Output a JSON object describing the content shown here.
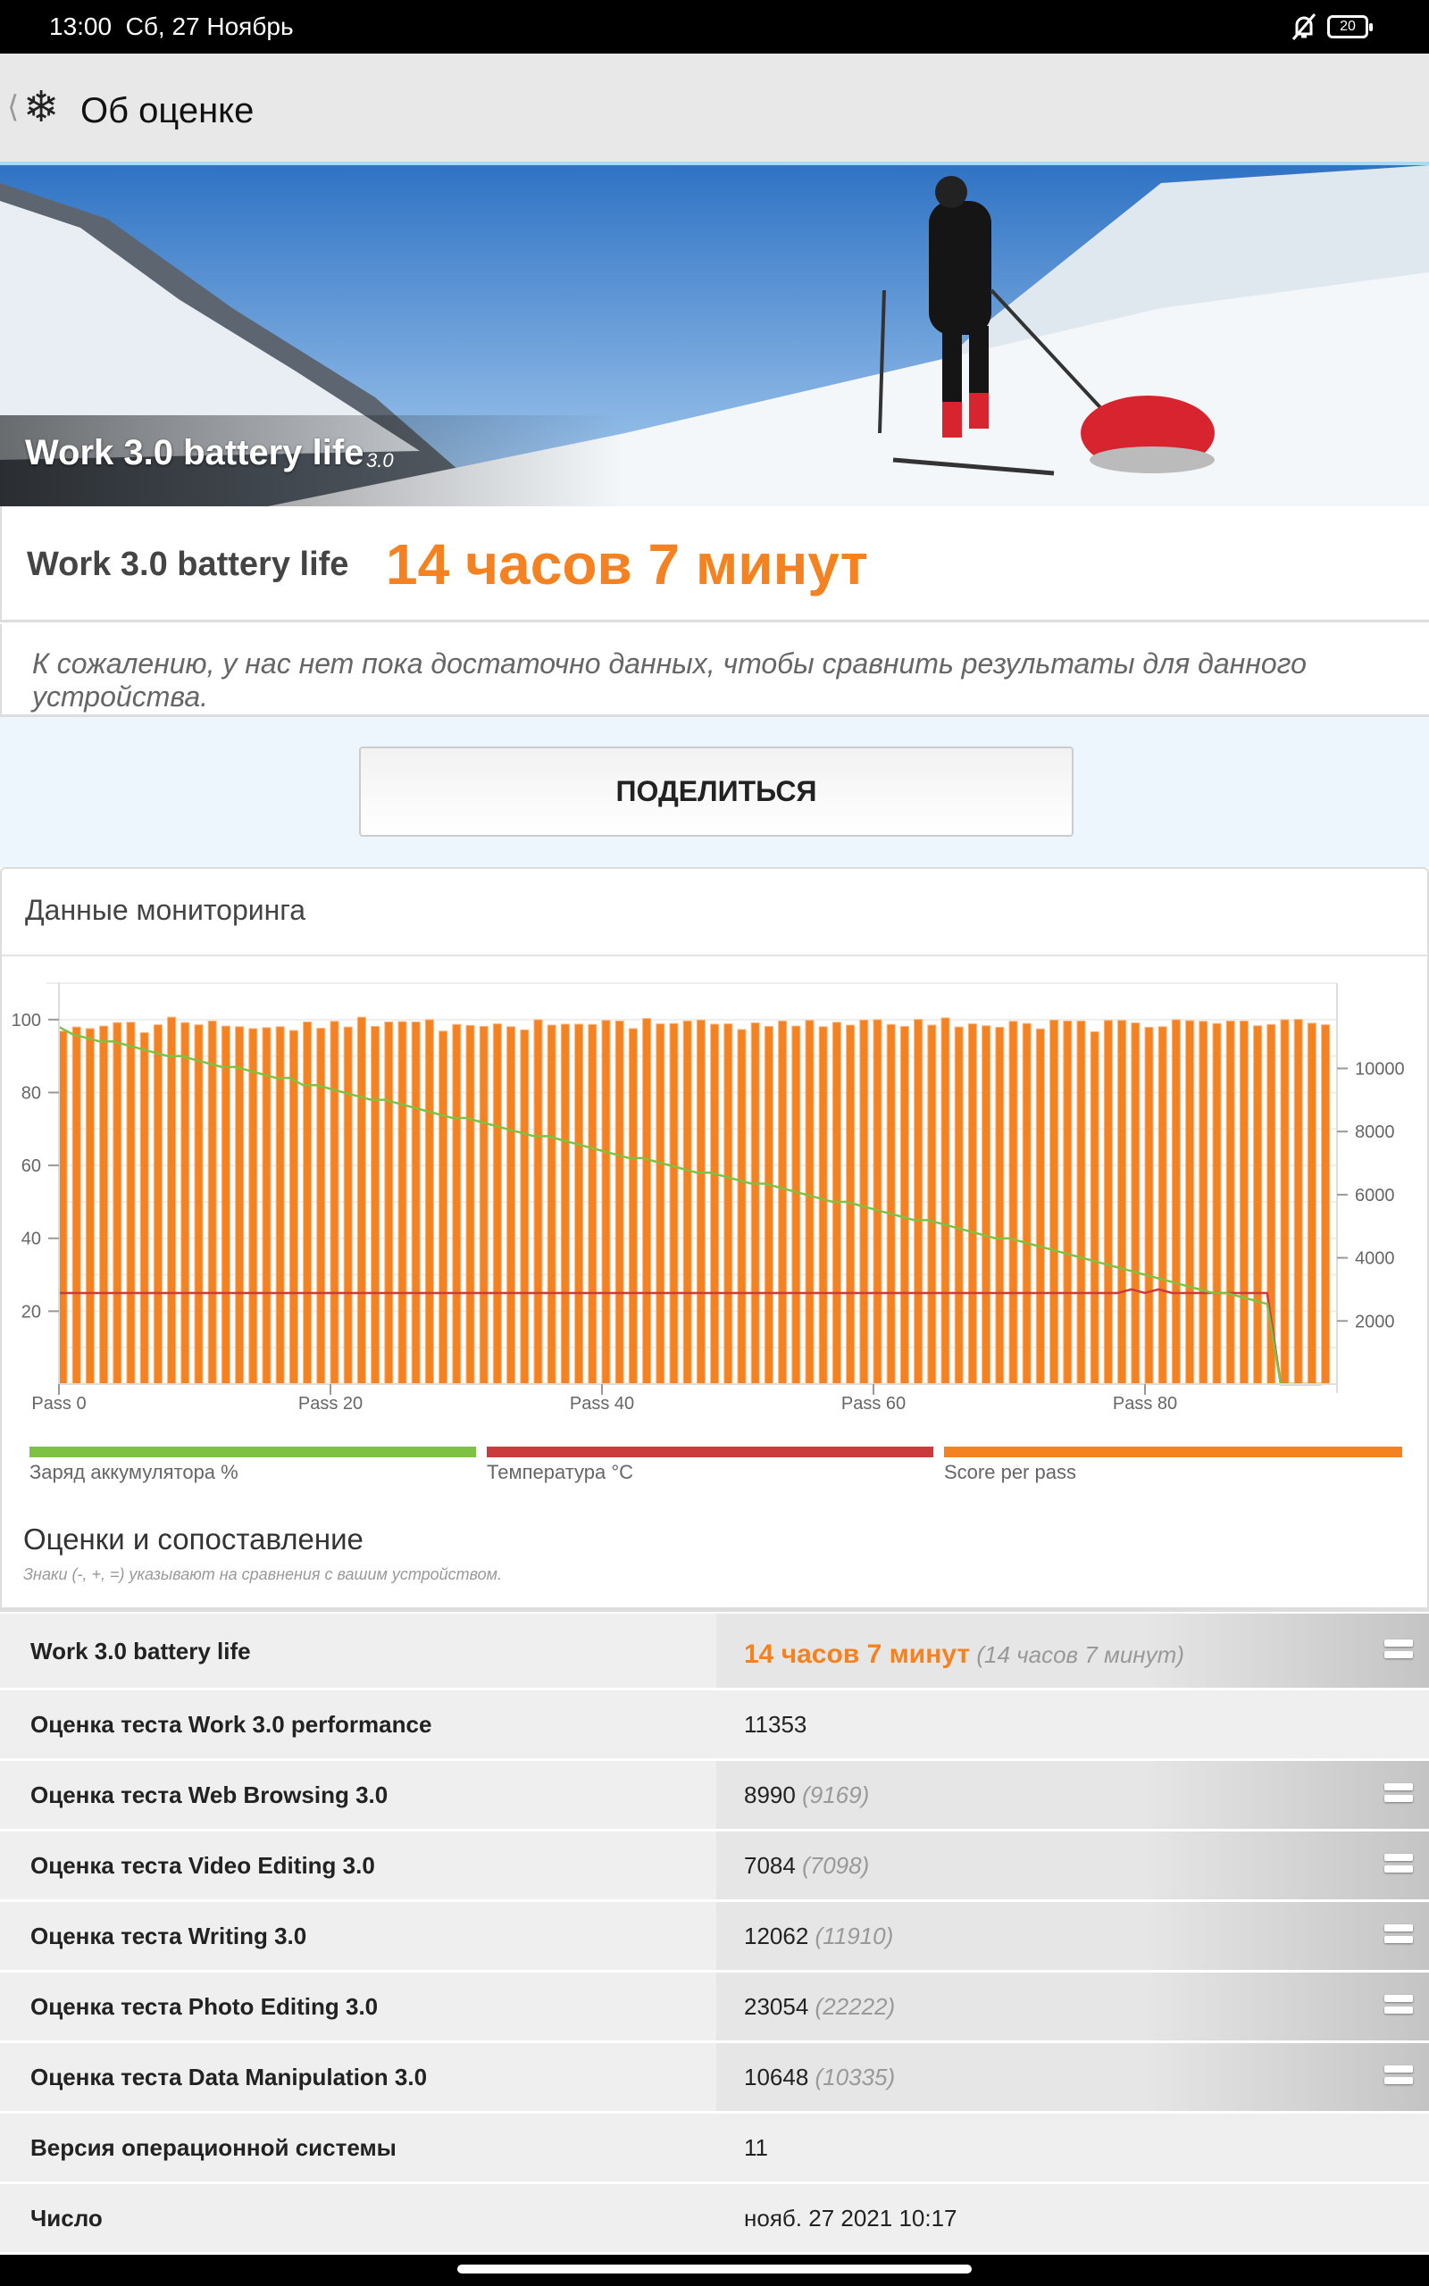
{
  "status_bar": {
    "time": "13:00",
    "date": "Сб, 27 Ноябрь",
    "battery": "20",
    "icons": [
      "bell-off-icon",
      "battery-icon"
    ]
  },
  "app_bar": {
    "back_icon": "chevron-left-icon",
    "logo_icon": "snowflake-icon",
    "title": "Об оценке"
  },
  "hero": {
    "title": "Work 3.0 battery life",
    "version": "3.0"
  },
  "result": {
    "label": "Work 3.0 battery life",
    "value": "14 часов 7 минут",
    "color": "#f58220"
  },
  "message": "К сожалению, у нас нет пока достаточно данных, чтобы сравнить результаты для данного устройства.",
  "share_label": "ПОДЕЛИТЬСЯ",
  "monitoring": {
    "title": "Данные мониторинга"
  },
  "chart_data": {
    "type": "bar+line",
    "x_tick_labels": [
      "Pass 0",
      "Pass 20",
      "Pass 40",
      "Pass 60",
      "Pass 80"
    ],
    "x_ticks": [
      0,
      20,
      40,
      60,
      80
    ],
    "xlim": [
      0,
      94
    ],
    "y_left": {
      "ylim": [
        0,
        110
      ],
      "ticks": [
        20,
        40,
        60,
        80,
        100
      ]
    },
    "y_right": {
      "ylim": [
        0,
        12700
      ],
      "ticks": [
        2000,
        4000,
        6000,
        8000,
        10000
      ]
    },
    "grid": true,
    "legend_placement": "bottom",
    "series": [
      {
        "name": "Заряд аккумулятора %",
        "type": "line",
        "axis": "left",
        "color": "#7dc242",
        "values": [
          98,
          96,
          95,
          94,
          94,
          93,
          92,
          91,
          90,
          90,
          89,
          88,
          87,
          87,
          86,
          85,
          84,
          84,
          82,
          82,
          81,
          80,
          79,
          78,
          78,
          77,
          76,
          75,
          74,
          73,
          73,
          72,
          71,
          70,
          69,
          68,
          68,
          67,
          66,
          65,
          64,
          63,
          62,
          62,
          61,
          60,
          59,
          58,
          58,
          57,
          56,
          55,
          55,
          54,
          53,
          52,
          51,
          50,
          50,
          49,
          48,
          47,
          46,
          45,
          45,
          44,
          43,
          42,
          41,
          40,
          40,
          39,
          38,
          37,
          36,
          35,
          34,
          33,
          32,
          31,
          30,
          29,
          28,
          27,
          26,
          25,
          25,
          24,
          23,
          22,
          0,
          0,
          0,
          0
        ]
      },
      {
        "name": "Температура °C",
        "type": "line",
        "axis": "left",
        "color": "#cc3b3b",
        "values": [
          25,
          25,
          25,
          25,
          25,
          25,
          25,
          25,
          25,
          25,
          25,
          25,
          25,
          25,
          25,
          25,
          25,
          25,
          25,
          25,
          25,
          25,
          25,
          25,
          25,
          25,
          25,
          25,
          25,
          25,
          25,
          25,
          25,
          25,
          25,
          25,
          25,
          25,
          25,
          25,
          25,
          25,
          25,
          25,
          25,
          25,
          25,
          25,
          25,
          25,
          25,
          25,
          25,
          25,
          25,
          25,
          25,
          25,
          25,
          25,
          25,
          25,
          25,
          25,
          25,
          25,
          25,
          25,
          25,
          25,
          25,
          25,
          25,
          25,
          25,
          25,
          25,
          25,
          25,
          26,
          25,
          26,
          25,
          25,
          25,
          25,
          25,
          25,
          25,
          25,
          0,
          0,
          0,
          0
        ]
      },
      {
        "name": "Score per pass",
        "type": "bar",
        "axis": "right",
        "color": "#f58220",
        "values": [
          11180,
          11310,
          11260,
          11340,
          11450,
          11460,
          11130,
          11380,
          11620,
          11450,
          11380,
          11500,
          11340,
          11320,
          11260,
          11290,
          11320,
          11200,
          11470,
          11270,
          11490,
          11310,
          11620,
          11330,
          11470,
          11480,
          11470,
          11540,
          11180,
          11390,
          11360,
          11330,
          11410,
          11320,
          11220,
          11540,
          11370,
          11400,
          11400,
          11390,
          11520,
          11500,
          11260,
          11580,
          11410,
          11420,
          11500,
          11530,
          11400,
          11410,
          11230,
          11440,
          11330,
          11500,
          11340,
          11520,
          11320,
          11460,
          11370,
          11530,
          11540,
          11390,
          11330,
          11550,
          11370,
          11600,
          11310,
          11410,
          11350,
          11300,
          11490,
          11420,
          11250,
          11530,
          11500,
          11500,
          11160,
          11520,
          11520,
          11440,
          11300,
          11320,
          11540,
          11510,
          11490,
          11420,
          11500,
          11500,
          11350,
          11390,
          11540,
          11550,
          11430,
          11380
        ]
      }
    ]
  },
  "comparison": {
    "title": "Оценки и сопоставление",
    "note": "Знаки (-, +, =) указывают на сравнения с вашим устройством.",
    "rows": [
      {
        "label": "Work 3.0 battery life",
        "value": "14 часов 7 минут",
        "ref": "(14 часов 7 минут)",
        "icon": "equals-icon"
      },
      {
        "label": "Оценка теста Work 3.0 performance",
        "value": "11353",
        "ref": ""
      },
      {
        "label": "Оценка теста Web Browsing 3.0",
        "value": "8990",
        "ref": "(9169)",
        "icon": "equals-icon"
      },
      {
        "label": "Оценка теста Video Editing 3.0",
        "value": "7084",
        "ref": "(7098)",
        "icon": "equals-icon"
      },
      {
        "label": "Оценка теста Writing 3.0",
        "value": "12062",
        "ref": "(11910)",
        "icon": "equals-icon"
      },
      {
        "label": "Оценка теста Photo Editing 3.0",
        "value": "23054",
        "ref": "(22222)",
        "icon": "equals-icon"
      },
      {
        "label": "Оценка теста Data Manipulation 3.0",
        "value": "10648",
        "ref": "(10335)",
        "icon": "equals-icon"
      },
      {
        "label": "Версия операционной системы",
        "value": "11",
        "ref": ""
      },
      {
        "label": "Число",
        "value": "нояб. 27 2021 10:17",
        "ref": ""
      }
    ]
  }
}
